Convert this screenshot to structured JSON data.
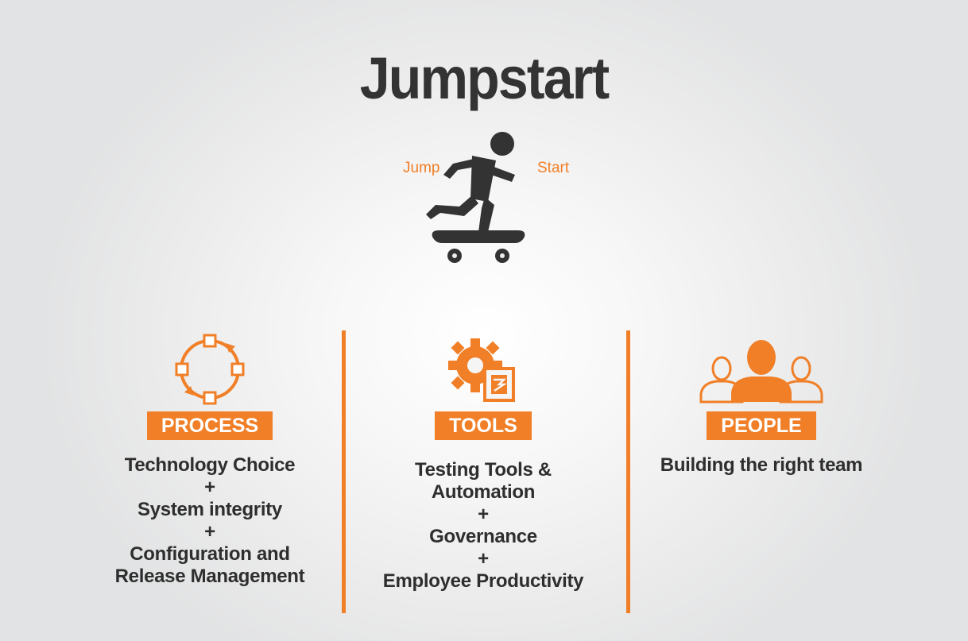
{
  "title": "Jumpstart",
  "skater": {
    "left_label": "Jump",
    "right_label": "Start"
  },
  "colors": {
    "accent": "#f07f27",
    "text": "#2e2e2e",
    "title": "#333333"
  },
  "columns": [
    {
      "icon": "process-cycle-icon",
      "badge": "PROCESS",
      "lines": [
        "Technology Choice",
        "+",
        "System integrity",
        "+",
        "Configuration and",
        "Release Management"
      ]
    },
    {
      "icon": "gear-tools-icon",
      "badge": "TOOLS",
      "lines": [
        "Testing Tools &",
        "Automation",
        "+",
        "Governance",
        "+",
        "Employee Productivity"
      ]
    },
    {
      "icon": "people-group-icon",
      "badge": "PEOPLE",
      "lines": [
        "Building the right team"
      ]
    }
  ]
}
